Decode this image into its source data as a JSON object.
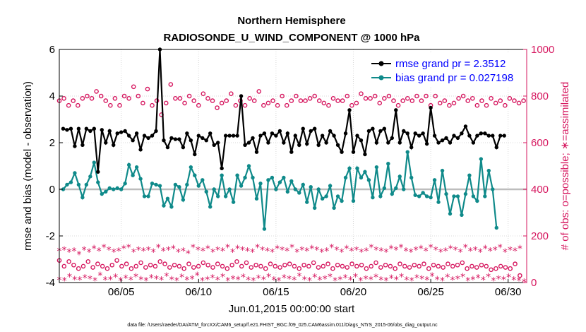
{
  "chart_data": {
    "type": "line",
    "title": "Northern Hemisphere",
    "subtitle": "RADIOSONDE_U_WIND_COMPONENT @ 1000 hPa",
    "xlabel": "Jun.01,2015 00:00:00 start",
    "ylabel": "rmse and bias (model - observation)",
    "ylabel_right": "# of obs: o=possible; ∗=assimilated",
    "footer": "data file: /Users/raeder/DAI/ATM_forcXX/CAM6_setup/f.e21.FHIST_BGC.f09_025.CAM6assim.011/Diags_NTrS_2015-06/obs_diag_output.nc",
    "x_range": [
      1.0,
      31.2
    ],
    "ylim": [
      -4,
      6
    ],
    "ylim_right": [
      0,
      1000
    ],
    "yticks": [
      -4,
      -2,
      0,
      2,
      4,
      6
    ],
    "yticks_right": [
      0,
      200,
      400,
      600,
      800,
      1000
    ],
    "xticks": [
      5,
      10,
      15,
      20,
      25,
      30
    ],
    "xtick_labels": [
      "06/05",
      "06/10",
      "06/15",
      "06/20",
      "06/25",
      "06/30"
    ],
    "x_start": 1.25,
    "x_step": 0.25,
    "colors": {
      "rmse": "#000000",
      "bias": "#0f8a8a",
      "obs": "#d6175f",
      "zero_line": "#bdbdbd",
      "grid": "#d9d9d9",
      "legend_text": "#0000ff"
    },
    "legend": [
      {
        "label": "rmse grand pr = 2.3512",
        "series": "rmse"
      },
      {
        "label": "bias grand pr = 0.027198",
        "series": "bias"
      }
    ],
    "series": [
      {
        "name": "rmse",
        "values": [
          2.6,
          2.55,
          2.6,
          1.85,
          2.6,
          1.9,
          2.6,
          2.5,
          2.6,
          0.75,
          2.55,
          2.0,
          2.5,
          1.9,
          2.4,
          2.45,
          2.5,
          2.3,
          2.1,
          2.4,
          1.7,
          2.3,
          2.2,
          2.3,
          2.5,
          6.0,
          2.1,
          1.8,
          2.2,
          2.15,
          2.15,
          1.8,
          2.4,
          2.1,
          1.5,
          2.3,
          2.2,
          2.1,
          2.4,
          1.9,
          2.0,
          0.9,
          2.3,
          2.3,
          2.3,
          2.3,
          4.0,
          1.9,
          2.0,
          2.2,
          1.6,
          2.3,
          2.4,
          2.0,
          2.4,
          2.3,
          2.5,
          2.0,
          2.4,
          1.6,
          2.3,
          1.9,
          2.6,
          1.95,
          2.5,
          2.6,
          1.9,
          2.3,
          2.0,
          2.5,
          2.3,
          1.9,
          1.6,
          2.4,
          3.4,
          1.6,
          2.3,
          2.1,
          1.5,
          2.5,
          2.6,
          2.0,
          2.5,
          2.6,
          2.0,
          2.2,
          3.4,
          2.0,
          2.5,
          2.4,
          1.8,
          2.4,
          2.3,
          2.4,
          1.95,
          3.5,
          2.3,
          2.0,
          2.1,
          2.2,
          2.0,
          2.3,
          2.2,
          2.4,
          2.7,
          2.3,
          2.0,
          2.3,
          2.4,
          2.4,
          2.3,
          2.3,
          1.8,
          2.3,
          2.3
        ],
        "note": "plotted every 0.25 day starting at x_start"
      },
      {
        "name": "bias",
        "values": [
          0.0,
          0.2,
          0.3,
          0.7,
          0.2,
          -0.35,
          0.2,
          0.55,
          1.15,
          0.3,
          -0.2,
          -0.1,
          0.05,
          0.0,
          0.05,
          0.0,
          0.25,
          1.05,
          0.6,
          0.95,
          0.45,
          -0.3,
          -0.3,
          0.25,
          0.2,
          0.15,
          -0.7,
          -0.4,
          -0.75,
          0.2,
          0.1,
          -0.45,
          0.2,
          0.95,
          0.6,
          0.15,
          0.4,
          -0.1,
          -0.75,
          0.0,
          -0.3,
          0.6,
          -0.3,
          0.0,
          -0.55,
          0.6,
          0.15,
          0.5,
          1.0,
          0.5,
          -0.4,
          0.25,
          -1.7,
          0.4,
          0.5,
          0.0,
          0.3,
          0.5,
          -0.1,
          0.35,
          0.0,
          -0.15,
          0.2,
          -0.55,
          0.1,
          -0.8,
          0.0,
          -0.4,
          -0.3,
          0.15,
          -0.8,
          -0.3,
          -0.5,
          0.5,
          0.9,
          -0.5,
          0.9,
          0.5,
          0.75,
          0.4,
          -0.35,
          0.95,
          -0.3,
          0.05,
          1.1,
          -0.2,
          0.05,
          0.55,
          0.0,
          1.6,
          0.5,
          -0.25,
          -0.3,
          -0.15,
          -0.3,
          -0.35,
          0.4,
          -0.55,
          0.8,
          -0.2,
          -1.05,
          -0.3,
          -0.3,
          -1.1,
          -0.2,
          0.6,
          -0.3,
          -0.5,
          1.3,
          -0.3,
          0.8,
          0.0,
          -1.65
        ],
        "note": "plotted every 0.25 day starting at x_start"
      },
      {
        "name": "possible",
        "marker": "o",
        "values": [
          780,
          790,
          760,
          780,
          760,
          790,
          800,
          790,
          820,
          800,
          780,
          760,
          790,
          760,
          800,
          790,
          840,
          800,
          770,
          830,
          760,
          780,
          720,
          770,
          850,
          790,
          790,
          770,
          800,
          780,
          760,
          810,
          790,
          780,
          750,
          770,
          780,
          810,
          760,
          780,
          760,
          790,
          780,
          820,
          760,
          770,
          780,
          760,
          800,
          760,
          780,
          800,
          780,
          780,
          790,
          800,
          780,
          770,
          760,
          790,
          780,
          780,
          800,
          760,
          770,
          810,
          790,
          790,
          800,
          770,
          790,
          800,
          780,
          760,
          780,
          790,
          780,
          800,
          780,
          800,
          760,
          800,
          770,
          780,
          760,
          770,
          790,
          800,
          780,
          790,
          760,
          780,
          760,
          790,
          770,
          780,
          760,
          790,
          780,
          770,
          780,
          780
        ],
        "x_start": 1.0,
        "x_step": 0.3,
        "axis": "right"
      },
      {
        "name": "possible_low",
        "marker": "o",
        "values": [
          95,
          70,
          90,
          75,
          60,
          70,
          90,
          65,
          80,
          70,
          60,
          75,
          95,
          70,
          80,
          60,
          70,
          85,
          65,
          75,
          70,
          90,
          80,
          65,
          75,
          70,
          60,
          80,
          65,
          70,
          85,
          75,
          65,
          80,
          70,
          60,
          75,
          90,
          70,
          85,
          65,
          75,
          70,
          60,
          80,
          70,
          65,
          75,
          80,
          70,
          60,
          75,
          70,
          85,
          65,
          70,
          80,
          60,
          75,
          70,
          65,
          80,
          70,
          75,
          60,
          70,
          85,
          65,
          75,
          70,
          60,
          80,
          70,
          65,
          75,
          70,
          80,
          60,
          75,
          70,
          65,
          80,
          70,
          75,
          85,
          60,
          70,
          65,
          75,
          70,
          55,
          60,
          70,
          65,
          60,
          80,
          30
        ],
        "x_start": 1.0,
        "x_step": 0.31,
        "axis": "right"
      },
      {
        "name": "assimilated",
        "marker": "*",
        "values": [
          135,
          140,
          130,
          135,
          120,
          140,
          130,
          145,
          135,
          150,
          140,
          130,
          135,
          145,
          150,
          130,
          140,
          135,
          140,
          130,
          150,
          135,
          140,
          145,
          130,
          135,
          125,
          150,
          140,
          135,
          145,
          130,
          140,
          135,
          150,
          130,
          145,
          140,
          135,
          130,
          150,
          140,
          135,
          130,
          145,
          140,
          135,
          150,
          130,
          140,
          135,
          145,
          140,
          130,
          135,
          150,
          140,
          130,
          145,
          135,
          140,
          130,
          135,
          150,
          140,
          135,
          130,
          145,
          140,
          150,
          135,
          130,
          140,
          145,
          135,
          150,
          140,
          130,
          135,
          145,
          140,
          130,
          150,
          135,
          140,
          130,
          145,
          135,
          140,
          150,
          130,
          140,
          135,
          145
        ],
        "x_start": 1.0,
        "x_step": 0.32,
        "axis": "right"
      },
      {
        "name": "assimilated_low",
        "marker": "*",
        "values": [
          10,
          8,
          25,
          12,
          10,
          20,
          15,
          8,
          30,
          10,
          12,
          22,
          8,
          18,
          10,
          25,
          12,
          8,
          20,
          15,
          10,
          28,
          12,
          8,
          22,
          10,
          15,
          30,
          8,
          12,
          20,
          10,
          25,
          8,
          15,
          12,
          22,
          10,
          8,
          18,
          12,
          25,
          10,
          8,
          20,
          15,
          10,
          28,
          12,
          8,
          22,
          10,
          15,
          25,
          8,
          12,
          20,
          10,
          25,
          8,
          15,
          12,
          22,
          10,
          8,
          18,
          12,
          25,
          10,
          8,
          20,
          15,
          10,
          28,
          12,
          8,
          22,
          10,
          15,
          25,
          8,
          12,
          20,
          10,
          25,
          8,
          15,
          12,
          22,
          10,
          8,
          2
        ],
        "x_start": 1.0,
        "x_step": 0.33,
        "axis": "right"
      }
    ]
  }
}
